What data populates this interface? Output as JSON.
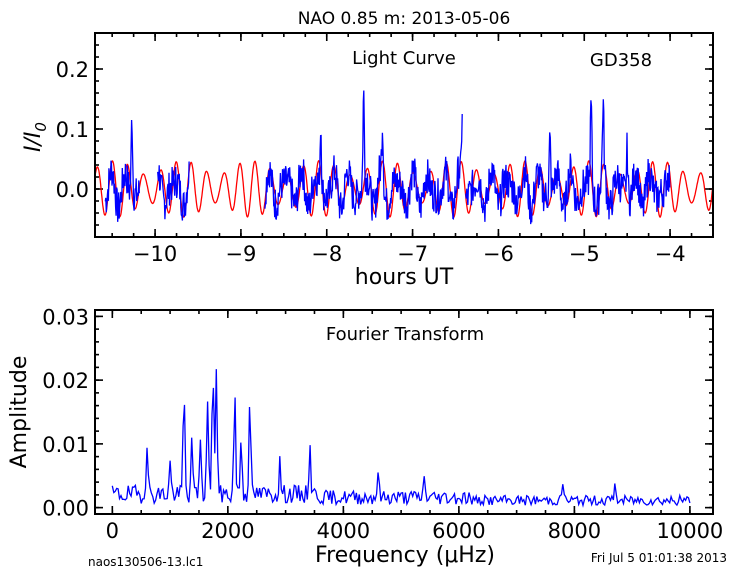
{
  "figure": {
    "title": "NAO 0.85 m:  2013-05-06",
    "footer_left": "naos130506-13.lc1",
    "footer_right": "Fri Jul  5 01:01:38 2013"
  },
  "chart_data": [
    {
      "type": "line",
      "title": "Light Curve",
      "annotation": "GD358",
      "xlabel": "hours UT",
      "ylabel": "I/I",
      "ylabel_subscript": "0",
      "xlim": [
        -10.7,
        -3.5
      ],
      "ylim": [
        -0.08,
        0.26
      ],
      "xticks": [
        -10,
        -9,
        -8,
        -7,
        -6,
        -5,
        -4
      ],
      "xtick_labels": [
        "−10",
        "−9",
        "−8",
        "−7",
        "−6",
        "−5",
        "−4"
      ],
      "yticks": [
        0.0,
        0.1,
        0.2
      ],
      "ytick_labels": [
        "0.0",
        "0.1",
        "0.2"
      ],
      "grid": false,
      "series": [
        {
          "color": "#0000ff",
          "segments": [
            {
              "x_start": -10.58,
              "x_end": -10.18,
              "dx": 0.006
            },
            {
              "x_start": -9.97,
              "x_end": -9.6,
              "dx": 0.006
            },
            {
              "x_start": -8.72,
              "x_end": -6.42,
              "dx": 0.006
            },
            {
              "x_start": -6.38,
              "x_end": -4.0,
              "dx": 0.006
            }
          ],
          "peaks": [
            {
              "x": -10.27,
              "y": 0.13
            },
            {
              "x": -9.5,
              "y": 0.1
            },
            {
              "x": -8.07,
              "y": 0.11
            },
            {
              "x": -7.57,
              "y": 0.15
            },
            {
              "x": -7.35,
              "y": 0.09
            },
            {
              "x": -6.42,
              "y": 0.13
            },
            {
              "x": -5.4,
              "y": 0.09
            },
            {
              "x": -4.92,
              "y": 0.13
            },
            {
              "x": -4.78,
              "y": 0.11
            },
            {
              "x": -4.5,
              "y": 0.08
            }
          ]
        },
        {
          "color": "#ff0000",
          "x_start": -10.7,
          "x_end": -3.5,
          "dx": 0.005,
          "period_hours": 0.185,
          "amplitude": 0.035
        }
      ]
    },
    {
      "type": "line",
      "title": "Fourier Transform",
      "xlabel": "Frequency (μHz)",
      "ylabel": "Amplitude",
      "xlim": [
        -300,
        10400
      ],
      "ylim": [
        -0.001,
        0.031
      ],
      "xticks": [
        0,
        2000,
        4000,
        6000,
        8000,
        10000
      ],
      "xtick_labels": [
        "0",
        "2000",
        "4000",
        "6000",
        "8000",
        "10000"
      ],
      "yticks": [
        0.0,
        0.01,
        0.02,
        0.03
      ],
      "ytick_labels": [
        "0.00",
        "0.01",
        "0.02",
        "0.03"
      ],
      "grid": false,
      "series": [
        {
          "color": "#0000ff",
          "x_start": 0,
          "x_end": 10000,
          "dx": 25,
          "peaks": [
            {
              "x": 600,
              "y": 0.0085
            },
            {
              "x": 1000,
              "y": 0.005
            },
            {
              "x": 1240,
              "y": 0.0165
            },
            {
              "x": 1380,
              "y": 0.008
            },
            {
              "x": 1520,
              "y": 0.009
            },
            {
              "x": 1650,
              "y": 0.0155
            },
            {
              "x": 1740,
              "y": 0.019
            },
            {
              "x": 1800,
              "y": 0.0205
            },
            {
              "x": 2120,
              "y": 0.016
            },
            {
              "x": 2230,
              "y": 0.009
            },
            {
              "x": 2380,
              "y": 0.0155
            },
            {
              "x": 2900,
              "y": 0.005
            },
            {
              "x": 3420,
              "y": 0.008
            },
            {
              "x": 4600,
              "y": 0.004
            },
            {
              "x": 5400,
              "y": 0.003
            },
            {
              "x": 7800,
              "y": 0.003
            },
            {
              "x": 8700,
              "y": 0.0025
            }
          ]
        }
      ]
    }
  ]
}
